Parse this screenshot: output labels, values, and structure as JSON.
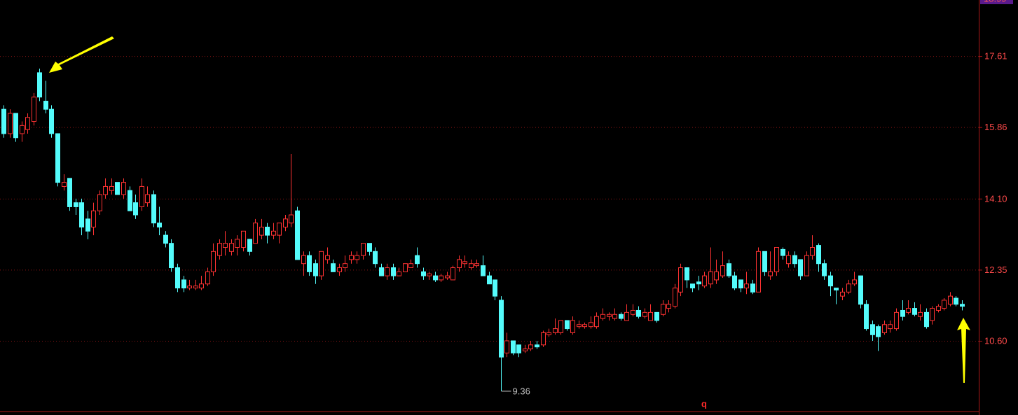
{
  "chart_data": {
    "type": "candlestick",
    "ylim": [
      8.86,
      18.99
    ],
    "yticks": [
      {
        "value": 10.6,
        "label": "10.60"
      },
      12.35,
      {
        "value": 14.1,
        "label": "14.10"
      },
      15.86,
      17.61
    ],
    "grid": true,
    "up_color": "#ff3232",
    "down_color": "#54fcfc",
    "low_marker": 9.36,
    "footer_label": "q",
    "candles": [
      [
        16.3,
        16.4,
        15.6,
        15.7
      ],
      [
        15.7,
        16.3,
        15.6,
        16.2
      ],
      [
        16.2,
        16.2,
        15.5,
        15.6
      ],
      [
        15.7,
        16.0,
        15.5,
        15.9
      ],
      [
        15.8,
        16.2,
        15.7,
        16.1
      ],
      [
        16.0,
        16.7,
        15.9,
        16.6
      ],
      [
        17.2,
        17.3,
        16.5,
        16.6
      ],
      [
        16.5,
        17.0,
        16.2,
        16.3
      ],
      [
        16.3,
        16.4,
        15.6,
        15.7
      ],
      [
        15.7,
        15.7,
        14.4,
        14.5
      ],
      [
        14.4,
        14.7,
        14.3,
        14.5
      ],
      [
        14.6,
        14.6,
        13.8,
        13.9
      ],
      [
        14.0,
        14.1,
        13.7,
        13.9
      ],
      [
        14.0,
        14.1,
        13.2,
        13.4
      ],
      [
        13.6,
        13.8,
        13.1,
        13.3
      ],
      [
        13.4,
        14.0,
        13.2,
        13.8
      ],
      [
        13.8,
        14.3,
        13.7,
        14.2
      ],
      [
        14.2,
        14.6,
        14.1,
        14.4
      ],
      [
        14.3,
        14.6,
        14.2,
        14.4
      ],
      [
        14.5,
        14.5,
        14.2,
        14.2
      ],
      [
        14.2,
        14.6,
        14.1,
        14.5
      ],
      [
        14.3,
        14.4,
        13.8,
        13.8
      ],
      [
        14.0,
        14.2,
        13.6,
        13.7
      ],
      [
        13.9,
        14.6,
        13.8,
        14.4
      ],
      [
        14.0,
        14.4,
        13.9,
        14.2
      ],
      [
        14.2,
        14.3,
        13.4,
        13.5
      ],
      [
        13.5,
        13.9,
        13.2,
        13.4
      ],
      [
        13.2,
        13.3,
        12.9,
        13.0
      ],
      [
        13.0,
        13.1,
        12.3,
        12.4
      ],
      [
        12.4,
        12.5,
        11.8,
        11.9
      ],
      [
        12.1,
        12.2,
        11.8,
        11.9
      ],
      [
        11.9,
        12.1,
        11.85,
        11.95
      ],
      [
        11.9,
        12.1,
        11.85,
        11.95
      ],
      [
        11.9,
        12.2,
        11.85,
        12.0
      ],
      [
        12.0,
        12.4,
        11.95,
        12.3
      ],
      [
        12.3,
        13.0,
        12.2,
        12.8
      ],
      [
        12.7,
        13.1,
        12.6,
        13.0
      ],
      [
        12.9,
        13.3,
        12.7,
        13.0
      ],
      [
        12.8,
        13.1,
        12.7,
        13.0
      ],
      [
        12.9,
        13.2,
        12.7,
        13.1
      ],
      [
        12.9,
        13.3,
        12.8,
        13.3
      ],
      [
        13.1,
        13.1,
        12.7,
        12.8
      ],
      [
        13.0,
        13.6,
        13.0,
        13.5
      ],
      [
        13.2,
        13.6,
        13.1,
        13.4
      ],
      [
        13.4,
        13.5,
        13.0,
        13.2
      ],
      [
        13.2,
        13.5,
        13.1,
        13.3
      ],
      [
        13.2,
        13.5,
        13.0,
        13.5
      ],
      [
        13.4,
        13.7,
        13.3,
        13.6
      ],
      [
        13.5,
        15.2,
        13.4,
        13.7
      ],
      [
        13.8,
        13.9,
        12.6,
        12.6
      ],
      [
        12.5,
        12.8,
        12.2,
        12.7
      ],
      [
        12.7,
        12.8,
        12.2,
        12.3
      ],
      [
        12.5,
        12.6,
        12.0,
        12.2
      ],
      [
        12.2,
        12.8,
        12.1,
        12.8
      ],
      [
        12.6,
        12.9,
        12.5,
        12.7
      ],
      [
        12.5,
        12.6,
        12.3,
        12.3
      ],
      [
        12.3,
        12.5,
        12.2,
        12.4
      ],
      [
        12.4,
        12.7,
        12.3,
        12.5
      ],
      [
        12.6,
        12.8,
        12.5,
        12.7
      ],
      [
        12.6,
        12.8,
        12.5,
        12.7
      ],
      [
        12.7,
        13.0,
        12.6,
        13.0
      ],
      [
        13.0,
        13.0,
        12.7,
        12.8
      ],
      [
        12.8,
        12.9,
        12.4,
        12.5
      ],
      [
        12.4,
        12.5,
        12.2,
        12.2
      ],
      [
        12.2,
        12.5,
        12.1,
        12.4
      ],
      [
        12.4,
        12.5,
        12.1,
        12.2
      ],
      [
        12.2,
        12.4,
        12.2,
        12.3
      ],
      [
        12.3,
        12.5,
        12.3,
        12.5
      ],
      [
        12.4,
        12.6,
        12.4,
        12.5
      ],
      [
        12.7,
        12.9,
        12.4,
        12.5
      ],
      [
        12.3,
        12.4,
        12.1,
        12.2
      ],
      [
        12.2,
        12.3,
        12.1,
        12.25
      ],
      [
        12.2,
        12.3,
        12.05,
        12.1
      ],
      [
        12.1,
        12.25,
        12.05,
        12.2
      ],
      [
        12.15,
        12.3,
        12.1,
        12.2
      ],
      [
        12.1,
        12.45,
        12.1,
        12.4
      ],
      [
        12.4,
        12.7,
        12.3,
        12.6
      ],
      [
        12.5,
        12.7,
        12.4,
        12.55
      ],
      [
        12.4,
        12.6,
        12.35,
        12.5
      ],
      [
        12.45,
        12.6,
        12.4,
        12.5
      ],
      [
        12.45,
        12.7,
        12.2,
        12.2
      ],
      [
        12.2,
        12.3,
        12.0,
        12.0
      ],
      [
        12.1,
        12.1,
        11.6,
        11.7
      ],
      [
        11.6,
        11.7,
        9.36,
        10.2
      ],
      [
        10.3,
        10.8,
        10.2,
        10.6
      ],
      [
        10.6,
        10.6,
        10.25,
        10.3
      ],
      [
        10.5,
        10.5,
        10.2,
        10.3
      ],
      [
        10.35,
        10.5,
        10.3,
        10.4
      ],
      [
        10.4,
        10.6,
        10.35,
        10.5
      ],
      [
        10.5,
        10.6,
        10.4,
        10.45
      ],
      [
        10.5,
        10.85,
        10.45,
        10.8
      ],
      [
        10.75,
        10.9,
        10.7,
        10.8
      ],
      [
        10.8,
        11.15,
        10.75,
        10.9
      ],
      [
        10.8,
        11.1,
        10.75,
        11.1
      ],
      [
        11.1,
        11.1,
        10.85,
        10.9
      ],
      [
        10.8,
        11.2,
        10.75,
        11.1
      ],
      [
        10.95,
        11.1,
        10.9,
        11.0
      ],
      [
        10.95,
        11.05,
        10.9,
        11.0
      ],
      [
        10.95,
        11.2,
        10.9,
        11.05
      ],
      [
        10.95,
        11.3,
        10.9,
        11.2
      ],
      [
        11.15,
        11.4,
        11.1,
        11.25
      ],
      [
        11.2,
        11.3,
        11.1,
        11.25
      ],
      [
        11.15,
        11.4,
        11.1,
        11.25
      ],
      [
        11.25,
        11.3,
        11.1,
        11.15
      ],
      [
        11.1,
        11.5,
        11.1,
        11.3
      ],
      [
        11.25,
        11.5,
        11.2,
        11.35
      ],
      [
        11.35,
        11.45,
        11.15,
        11.2
      ],
      [
        11.2,
        11.4,
        11.15,
        11.3
      ],
      [
        11.1,
        11.5,
        11.1,
        11.3
      ],
      [
        11.3,
        11.3,
        11.05,
        11.1
      ],
      [
        11.25,
        11.6,
        11.2,
        11.5
      ],
      [
        11.4,
        11.6,
        11.3,
        11.5
      ],
      [
        11.45,
        12.0,
        11.4,
        11.9
      ],
      [
        11.8,
        12.5,
        11.7,
        12.4
      ],
      [
        12.4,
        12.4,
        11.9,
        12.1
      ],
      [
        12.0,
        12.0,
        11.8,
        11.9
      ],
      [
        12.05,
        12.2,
        11.85,
        12.0
      ],
      [
        11.95,
        12.3,
        11.9,
        12.2
      ],
      [
        12.0,
        12.9,
        11.9,
        12.3
      ],
      [
        12.1,
        12.6,
        12.0,
        12.3
      ],
      [
        12.2,
        12.8,
        12.15,
        12.45
      ],
      [
        12.5,
        12.6,
        12.15,
        12.2
      ],
      [
        12.2,
        12.3,
        11.85,
        11.9
      ],
      [
        12.1,
        12.1,
        11.8,
        11.9
      ],
      [
        11.9,
        12.3,
        11.75,
        12.0
      ],
      [
        12.0,
        12.1,
        11.75,
        11.8
      ],
      [
        11.8,
        12.9,
        11.8,
        12.8
      ],
      [
        12.8,
        12.8,
        12.2,
        12.3
      ],
      [
        12.2,
        12.8,
        12.1,
        12.3
      ],
      [
        12.3,
        12.9,
        12.2,
        12.9
      ],
      [
        12.85,
        12.9,
        12.6,
        12.7
      ],
      [
        12.5,
        12.8,
        12.4,
        12.7
      ],
      [
        12.7,
        12.8,
        12.4,
        12.5
      ],
      [
        12.6,
        12.6,
        12.1,
        12.2
      ],
      [
        12.2,
        12.8,
        12.2,
        12.7
      ],
      [
        12.7,
        13.2,
        12.6,
        12.9
      ],
      [
        12.95,
        13.0,
        12.3,
        12.5
      ],
      [
        12.5,
        12.6,
        12.1,
        12.2
      ],
      [
        12.2,
        12.3,
        11.7,
        11.95
      ],
      [
        11.9,
        11.9,
        11.5,
        11.85
      ],
      [
        11.7,
        11.9,
        11.6,
        11.8
      ],
      [
        11.8,
        12.1,
        11.75,
        12.0
      ],
      [
        12.0,
        12.3,
        11.95,
        12.1
      ],
      [
        12.2,
        12.2,
        11.4,
        11.5
      ],
      [
        11.5,
        11.6,
        10.85,
        10.9
      ],
      [
        11.0,
        11.1,
        10.6,
        10.75
      ],
      [
        10.95,
        11.0,
        10.35,
        10.7
      ],
      [
        10.8,
        11.1,
        10.75,
        11.0
      ],
      [
        10.9,
        11.1,
        10.8,
        11.0
      ],
      [
        10.9,
        11.4,
        10.85,
        11.3
      ],
      [
        11.35,
        11.6,
        11.1,
        11.2
      ],
      [
        11.3,
        11.6,
        11.25,
        11.4
      ],
      [
        11.4,
        11.55,
        11.2,
        11.25
      ],
      [
        11.2,
        11.5,
        11.1,
        11.3
      ],
      [
        11.3,
        11.4,
        10.9,
        10.95
      ],
      [
        11.1,
        11.45,
        11.0,
        11.4
      ],
      [
        11.35,
        11.5,
        11.3,
        11.45
      ],
      [
        11.4,
        11.65,
        11.35,
        11.6
      ],
      [
        11.5,
        11.8,
        11.45,
        11.7
      ],
      [
        11.65,
        11.7,
        11.45,
        11.5
      ],
      [
        11.5,
        11.6,
        11.35,
        11.45
      ]
    ]
  }
}
